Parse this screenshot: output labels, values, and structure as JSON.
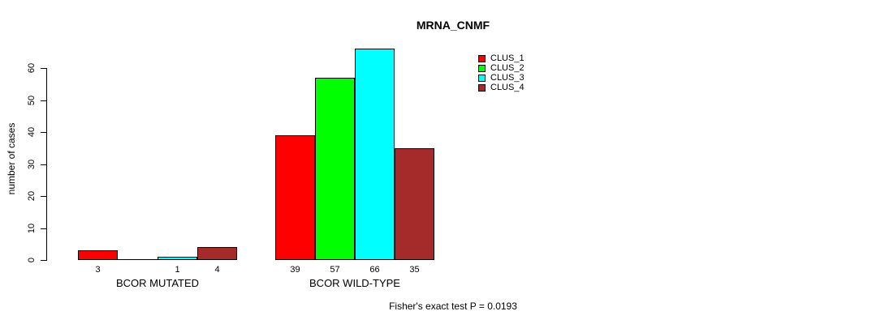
{
  "chart_data": {
    "type": "bar",
    "title": "MRNA_CNMF",
    "xlabel": "",
    "ylabel": "number of cases",
    "ylim": [
      0,
      60
    ],
    "yticks": [
      0,
      10,
      20,
      30,
      40,
      50,
      60
    ],
    "grid": false,
    "legend_position": "top-right",
    "categories": [
      "BCOR MUTATED",
      "BCOR WILD-TYPE"
    ],
    "series": [
      {
        "name": "CLUS_1",
        "color": "#ff0000",
        "values": [
          3,
          39
        ]
      },
      {
        "name": "CLUS_2",
        "color": "#00ff00",
        "values": [
          0,
          57
        ]
      },
      {
        "name": "CLUS_3",
        "color": "#00ffff",
        "values": [
          1,
          66
        ]
      },
      {
        "name": "CLUS_4",
        "color": "#a52a2a",
        "values": [
          4,
          35
        ]
      }
    ],
    "bar_value_labels": [
      [
        "3",
        "",
        "1",
        "4"
      ],
      [
        "39",
        "57",
        "66",
        "35"
      ]
    ],
    "annotation": "Fisher's exact test P = 0.0193"
  },
  "colors": {
    "axis": "#000000",
    "background": "#ffffff"
  }
}
